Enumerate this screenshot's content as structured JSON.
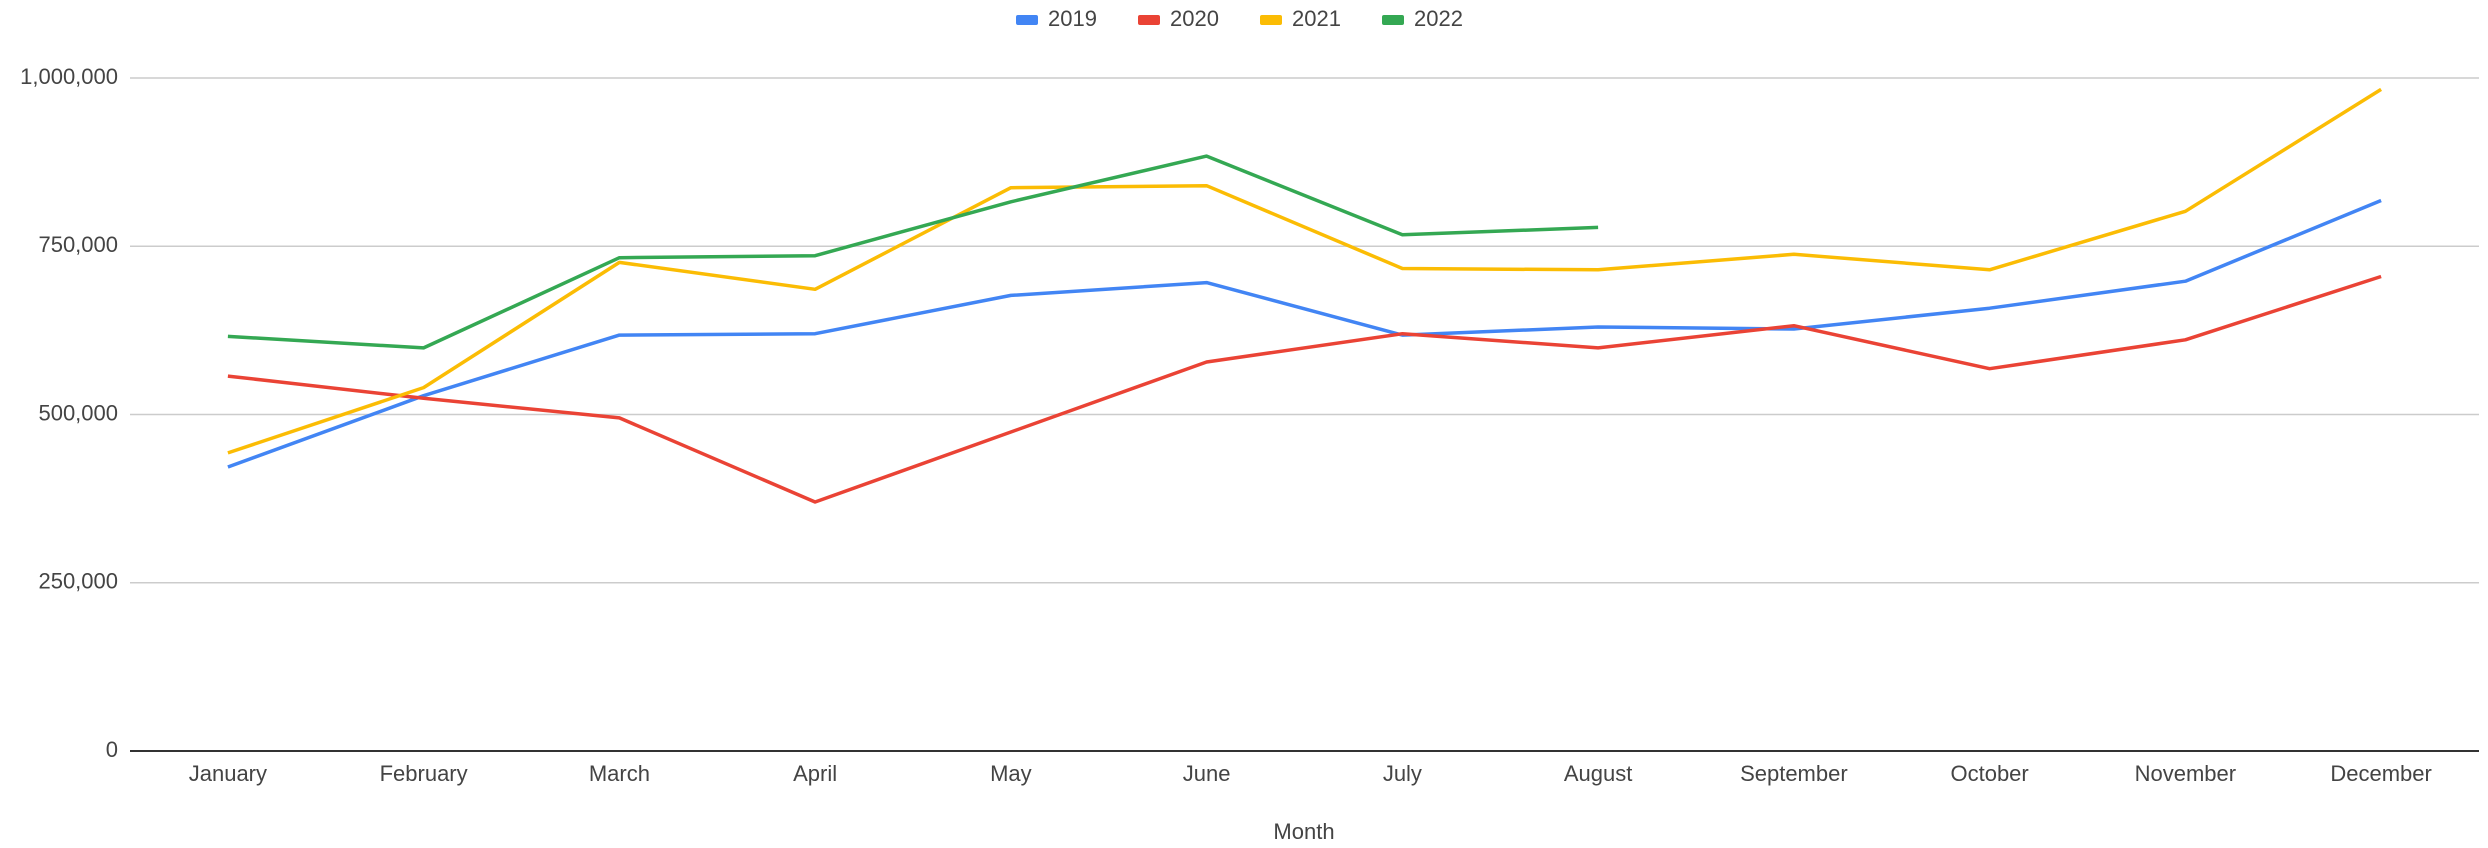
{
  "chart_data": {
    "type": "line",
    "x_label": "Month",
    "categories": [
      "January",
      "February",
      "March",
      "April",
      "May",
      "June",
      "July",
      "August",
      "September",
      "October",
      "November",
      "December"
    ],
    "series": [
      {
        "name": "2019",
        "color": "#4285f4",
        "values": [
          422000,
          528000,
          618000,
          620000,
          677000,
          696000,
          618000,
          630000,
          627000,
          658000,
          698000,
          818000
        ]
      },
      {
        "name": "2020",
        "color": "#ea4335",
        "values": [
          557000,
          524000,
          495000,
          370000,
          474000,
          578000,
          620000,
          599000,
          632000,
          568000,
          611000,
          705000
        ]
      },
      {
        "name": "2021",
        "color": "#fbbc04",
        "values": [
          443000,
          540000,
          726000,
          686000,
          837000,
          840000,
          717000,
          715000,
          738000,
          715000,
          802000,
          983000
        ]
      },
      {
        "name": "2022",
        "color": "#34a853",
        "values": [
          616000,
          599000,
          733000,
          736000,
          816000,
          884000,
          767000,
          778000,
          null,
          null,
          null,
          null
        ]
      }
    ],
    "ylim": [
      0,
      1000000
    ],
    "yticks": [
      0,
      {
        "value": 250000,
        "label": "250,000"
      },
      {
        "value": 500000,
        "label": "500,000"
      },
      {
        "value": 750000,
        "label": "750,000"
      },
      {
        "value": 1000000,
        "label": "1,000,000"
      }
    ],
    "grid": true,
    "legend": "top"
  }
}
